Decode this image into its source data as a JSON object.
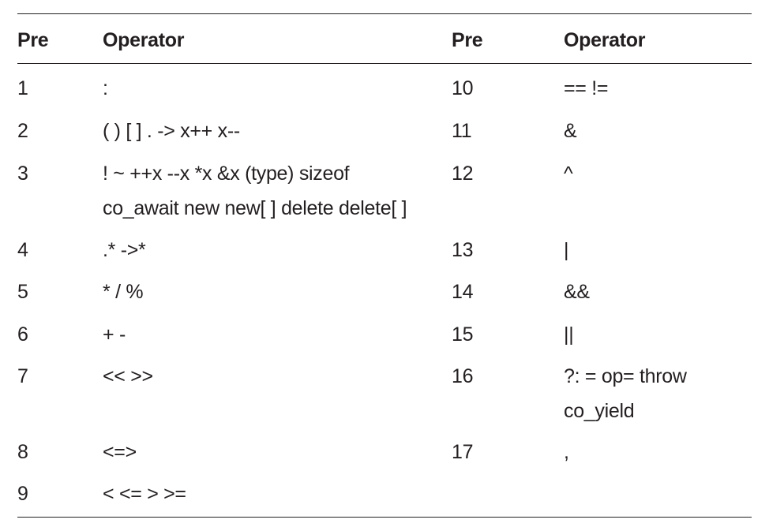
{
  "table": {
    "headers": [
      "Pre",
      "Operator",
      "Pre",
      "Operator"
    ],
    "left_rows": [
      {
        "pre": "1",
        "ops": [
          ":"
        ]
      },
      {
        "pre": "2",
        "ops": [
          "( ) [ ] . -> x++ x--"
        ]
      },
      {
        "pre": "3",
        "ops": [
          "! ~ ++x --x *x &x (type) sizeof",
          "co_await new new[ ] delete delete[ ]"
        ]
      },
      {
        "pre": "4",
        "ops": [
          ".* ->*"
        ]
      },
      {
        "pre": "5",
        "ops": [
          "* / %"
        ]
      },
      {
        "pre": "6",
        "ops": [
          "+ -"
        ]
      },
      {
        "pre": "7",
        "ops": [
          "<< >>"
        ]
      },
      {
        "pre": "8",
        "ops": [
          "<=>"
        ]
      },
      {
        "pre": "9",
        "ops": [
          "< <= > >="
        ]
      }
    ],
    "right_rows": [
      {
        "pre": "10",
        "ops": [
          "== !="
        ]
      },
      {
        "pre": "11",
        "ops": [
          "&"
        ]
      },
      {
        "pre": "12",
        "ops": [
          "^"
        ]
      },
      {
        "pre": "13",
        "ops": [
          "|"
        ]
      },
      {
        "pre": "14",
        "ops": [
          "&&"
        ]
      },
      {
        "pre": "15",
        "ops": [
          "||"
        ]
      },
      {
        "pre": "16",
        "ops": [
          "?: = op= throw",
          "co_yield"
        ]
      },
      {
        "pre": "17",
        "ops": [
          ","
        ]
      }
    ]
  }
}
